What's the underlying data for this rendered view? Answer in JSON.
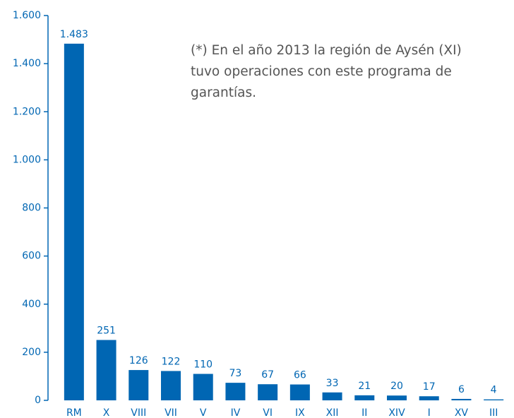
{
  "chart_data": {
    "type": "bar",
    "annotation": [
      "(*) En el año 2013 la región de Aysén (XI)",
      "tuvo operaciones con este programa de",
      "garantías."
    ],
    "categories": [
      "RM",
      "X",
      "VIII",
      "VII",
      "V",
      "IV",
      "VI",
      "IX",
      "XII",
      "II",
      "XIV",
      "I",
      "XV",
      "III"
    ],
    "values": [
      1483,
      251,
      126,
      122,
      110,
      73,
      67,
      66,
      33,
      21,
      20,
      17,
      6,
      4
    ],
    "value_labels": [
      "1.483",
      "251",
      "126",
      "122",
      "110",
      "73",
      "67",
      "66",
      "33",
      "21",
      "20",
      "17",
      "6",
      "4"
    ],
    "color": "#0066b3",
    "ylim": [
      0,
      1600
    ],
    "yticks": [
      0,
      200,
      400,
      600,
      800,
      {
        "value": 1000,
        "label": "1.000"
      },
      {
        "value": 1200,
        "label": "1.200"
      },
      {
        "value": 1400,
        "label": "1.400"
      },
      {
        "value": 1600,
        "label": "1.600"
      }
    ],
    "grid": false
  }
}
